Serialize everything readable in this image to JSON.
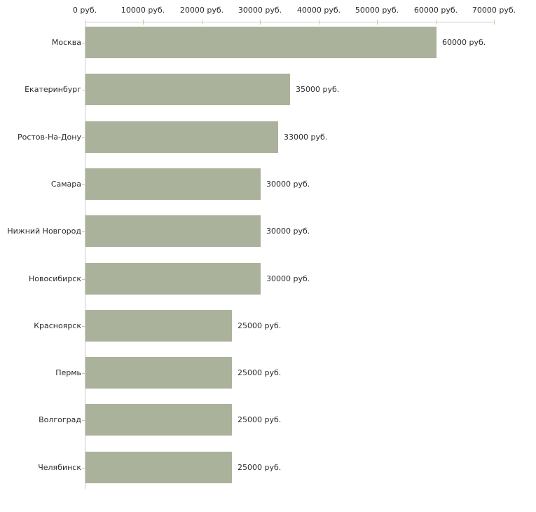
{
  "chart_data": {
    "type": "bar",
    "orientation": "horizontal",
    "title": "",
    "xlabel": "",
    "ylabel": "",
    "grid": false,
    "legend": false,
    "categories": [
      "Москва",
      "Екатеринбург",
      "Ростов-На-Дону",
      "Самара",
      "Нижний Новгород",
      "Новосибирск",
      "Красноярск",
      "Пермь",
      "Волгоград",
      "Челябинск"
    ],
    "values": [
      60000,
      35000,
      33000,
      30000,
      30000,
      30000,
      25000,
      25000,
      25000,
      25000
    ],
    "bar_labels": [
      "60000 руб.",
      "35000 руб.",
      "33000 руб.",
      "30000 руб.",
      "30000 руб.",
      "30000 руб.",
      "25000 руб.",
      "25000 руб.",
      "25000 руб.",
      "25000 руб."
    ],
    "x_tick_values": [
      0,
      10000,
      20000,
      30000,
      40000,
      50000,
      60000,
      70000
    ],
    "x_tick_labels": [
      "0 руб.",
      "10000 руб.",
      "20000 руб.",
      "30000 руб.",
      "40000 руб.",
      "50000 руб.",
      "60000 руб.",
      "70000 руб."
    ],
    "xlim": [
      0,
      70000
    ],
    "colors": {
      "bar": "#abb29b",
      "axis_line": "#cccccc",
      "tick_mark": "#cccc99",
      "text": "#2b2b2b",
      "background": "#ffffff"
    }
  }
}
